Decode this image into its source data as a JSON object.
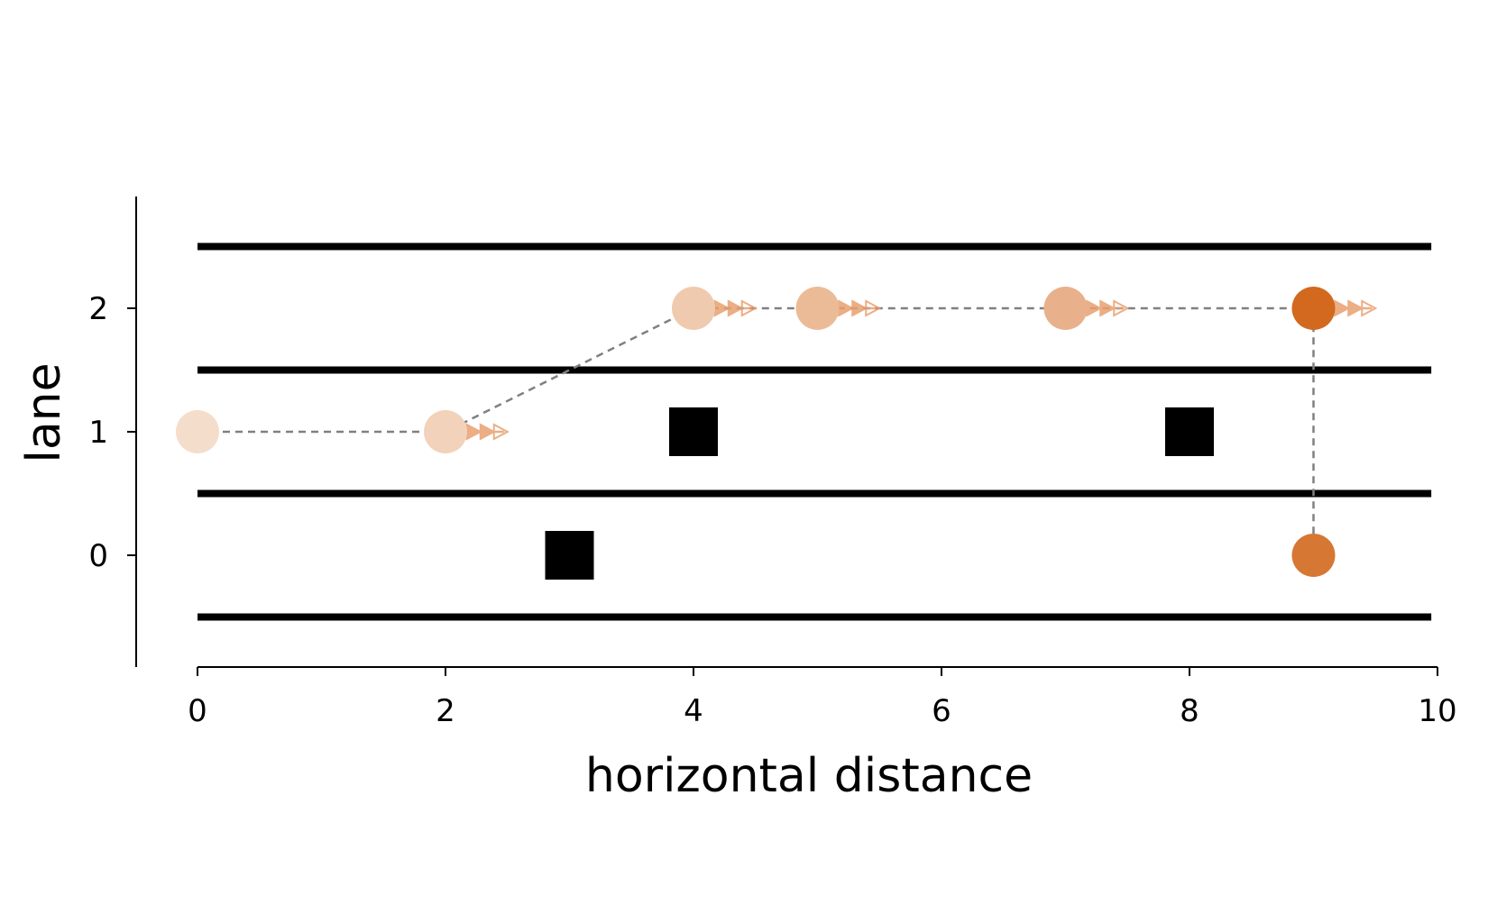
{
  "chart_data": {
    "type": "scatter",
    "title": "",
    "xlabel": "horizontal distance",
    "ylabel": "lane",
    "xlim": [
      -0.5,
      10
    ],
    "ylim": [
      -0.9,
      2.9
    ],
    "xticks": [
      0,
      2,
      4,
      6,
      8,
      10
    ],
    "yticks": [
      0,
      1,
      2
    ],
    "grid": false,
    "lane_boundaries": {
      "y": [
        -0.5,
        0.5,
        1.5,
        2.5
      ],
      "x_range": [
        0,
        9.95
      ]
    },
    "obstacles": [
      {
        "x": 3,
        "y": 0
      },
      {
        "x": 4,
        "y": 1
      },
      {
        "x": 8,
        "y": 1
      }
    ],
    "trajectory": [
      {
        "x": 0,
        "y": 1,
        "color": "#f5ddcc",
        "arrow_length": 0
      },
      {
        "x": 2,
        "y": 1,
        "color": "#f2d2ba",
        "arrow_length": 0.5
      },
      {
        "x": 4,
        "y": 2,
        "color": "#efcaae",
        "arrow_length": 0.5
      },
      {
        "x": 5,
        "y": 2,
        "color": "#ebbb98",
        "arrow_length": 0.5
      },
      {
        "x": 7,
        "y": 2,
        "color": "#e8b08b",
        "arrow_length": 0.5
      },
      {
        "x": 9,
        "y": 2,
        "color": "#d2691e",
        "arrow_length": 0.5
      },
      {
        "x": 9,
        "y": 0,
        "color": "#d67734",
        "arrow_length": 0
      }
    ],
    "colors": {
      "path": "#808080",
      "arrow": "#e8a070",
      "obstacle": "#000000",
      "lane_line": "#000000"
    }
  }
}
